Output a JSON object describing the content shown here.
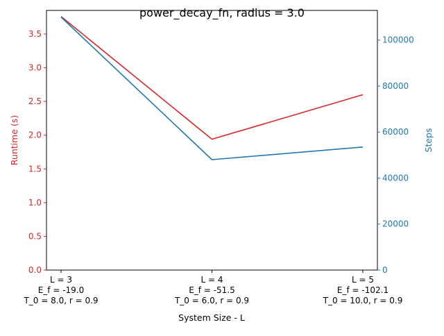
{
  "chart_data": {
    "type": "line",
    "title": "power_decay_fn, radius = 3.0",
    "xlabel": "System Size - L",
    "categories": [
      [
        "L = 3",
        "E_f = -19.0",
        "T_0 = 8.0, r = 0.9"
      ],
      [
        "L = 4",
        "E_f = -51.5",
        "T_0 = 6.0, r = 0.9"
      ],
      [
        "L = 5",
        "E_f = -102.1",
        "T_0 = 10.0, r = 0.9"
      ]
    ],
    "series": [
      {
        "axis": "left",
        "label": "Runtime (s)",
        "color": "#d62728",
        "values": [
          3.76,
          1.94,
          2.6
        ]
      },
      {
        "axis": "right",
        "label": "Steps",
        "color": "#1f77b4",
        "values": [
          110000,
          48000,
          53500
        ]
      }
    ],
    "left_axis": {
      "label": "Runtime (s)",
      "color": "#d62728",
      "ylim": [
        0,
        3.85
      ],
      "ticks": [
        0,
        0.5,
        1.0,
        1.5,
        2.0,
        2.5,
        3.0,
        3.5
      ],
      "tick_labels": [
        "0.0",
        "0.5",
        "1.0",
        "1.5",
        "2.0",
        "2.5",
        "3.0",
        "3.5"
      ]
    },
    "right_axis": {
      "label": "Steps",
      "color": "#1f77b4",
      "ylim": [
        0,
        112900
      ],
      "ticks": [
        0,
        20000,
        40000,
        60000,
        80000,
        100000
      ],
      "tick_labels": [
        "0",
        "20000",
        "40000",
        "60000",
        "80000",
        "100000"
      ]
    },
    "grid": false,
    "legend": "none"
  }
}
